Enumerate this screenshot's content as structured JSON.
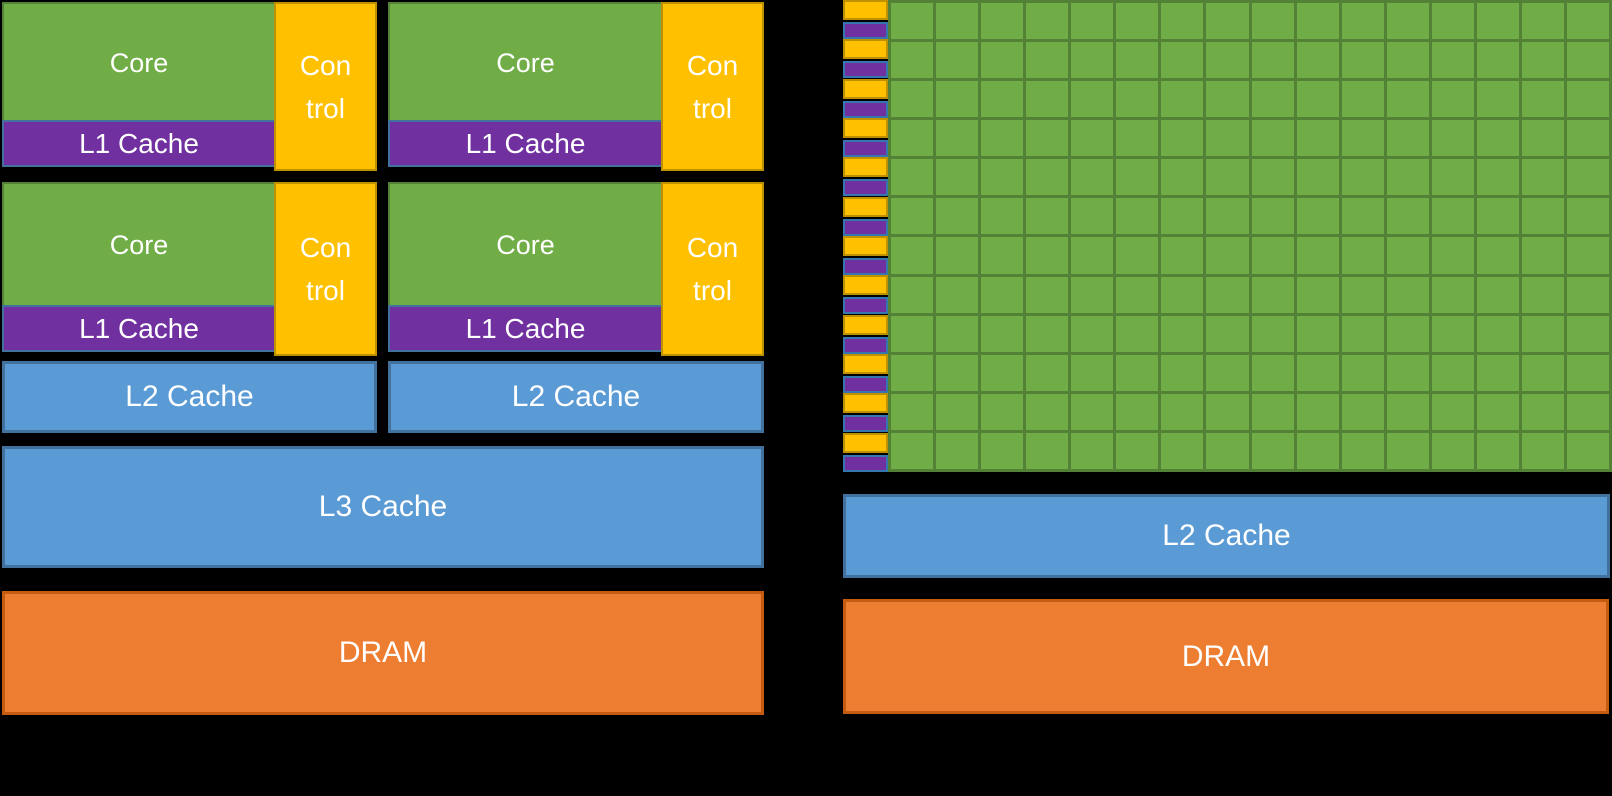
{
  "diagram": {
    "kind": "cpu-vs-gpu-architecture",
    "background": "#000000"
  },
  "colors": {
    "core_green": "#70AD47",
    "green_border": "#538135",
    "cache_purple": "#7030A0",
    "purple_border": "#3576AE",
    "control_yellow": "#FFC000",
    "yellow_border": "#BF9000",
    "cache_blue": "#5B9BD5",
    "blue_border": "#41719C",
    "dram_orange": "#ED7D31",
    "orange_border": "#C55A11",
    "text": "#FFFFFF"
  },
  "cpu": {
    "core_label": "Core",
    "l1_label": "L1 Cache",
    "control_line1": "Con",
    "control_line2": "trol",
    "l2_label": "L2 Cache",
    "l3_label": "L3 Cache",
    "dram_label": "DRAM",
    "core_block_count": 4,
    "l2_count": 2
  },
  "gpu": {
    "grid_rows": 12,
    "grid_cols": 16,
    "strip_rows": 12,
    "l2_label": "L2 Cache",
    "dram_label": "DRAM"
  }
}
